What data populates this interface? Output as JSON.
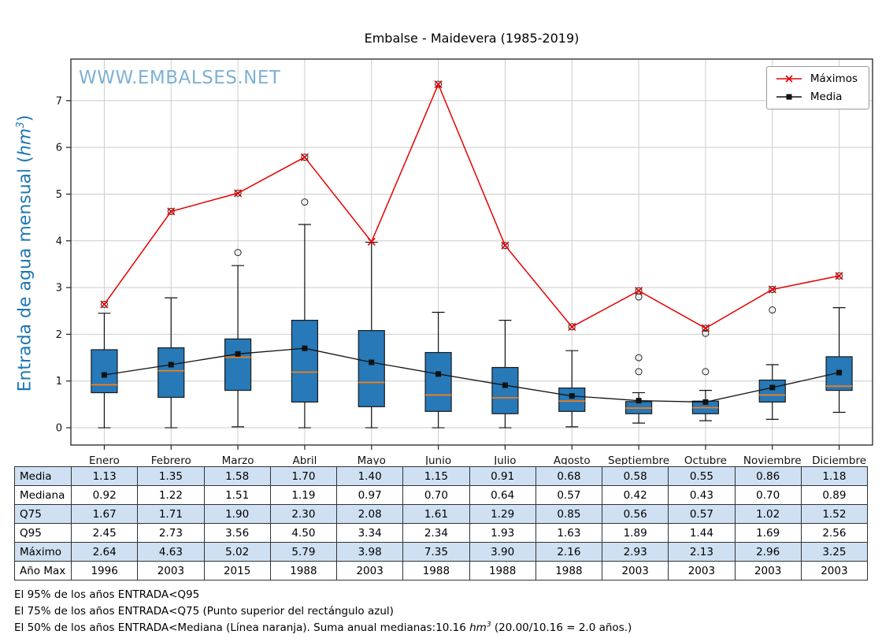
{
  "title": "Embalse - Maidevera (1985-2019)",
  "watermark": "WWW.EMBALSES.NET",
  "ylabel": {
    "prefix": "Entrada de agua mensual (",
    "unit": "hm",
    "sup": "3",
    "suffix": ")"
  },
  "legend": {
    "items": [
      {
        "label": "Máximos"
      },
      {
        "label": "Media"
      }
    ]
  },
  "colors": {
    "box_fill": "#2779b8",
    "box_edge": "#1a1a1a",
    "median_line": "#ff7f0e",
    "max_line": "#e60000",
    "mean_line": "#111111",
    "grid": "#cccccc",
    "axis": "#222222",
    "watermark": "#7fb1d4",
    "ylabel": "#1f77b4",
    "table_shaded_row": "#cfe0f3"
  },
  "chart_data": {
    "type": "boxplot+line",
    "title": "Embalse - Maidevera (1985-2019)",
    "ylabel": "Entrada de agua mensual (hm3)",
    "categories": [
      "Enero",
      "Febrero",
      "Marzo",
      "Abril",
      "Mayo",
      "Junio",
      "Julio",
      "Agosto",
      "Septiembre",
      "Octubre",
      "Noviembre",
      "Diciembre"
    ],
    "yticks": [
      0,
      1,
      2,
      3,
      4,
      5,
      6,
      7
    ],
    "ylim": [
      -0.37,
      7.89
    ],
    "grid": true,
    "legend_position": "upper right",
    "series": [
      {
        "name": "Máximos",
        "type": "line",
        "marker": "x",
        "color": "#e60000",
        "values": [
          2.64,
          4.63,
          5.02,
          5.79,
          3.98,
          7.35,
          3.9,
          2.16,
          2.93,
          2.13,
          2.96,
          3.25
        ]
      },
      {
        "name": "Media",
        "type": "line",
        "marker": "square",
        "color": "#111111",
        "values": [
          1.13,
          1.35,
          1.58,
          1.7,
          1.4,
          1.15,
          0.91,
          0.68,
          0.58,
          0.55,
          0.86,
          1.18
        ]
      }
    ],
    "boxes": {
      "q1": [
        0.75,
        0.65,
        0.8,
        0.55,
        0.45,
        0.35,
        0.3,
        0.35,
        0.3,
        0.3,
        0.55,
        0.8
      ],
      "median": [
        0.92,
        1.22,
        1.51,
        1.19,
        0.97,
        0.7,
        0.64,
        0.57,
        0.42,
        0.43,
        0.7,
        0.89
      ],
      "q3": [
        1.67,
        1.71,
        1.9,
        2.3,
        2.08,
        1.61,
        1.29,
        0.85,
        0.56,
        0.57,
        1.02,
        1.52
      ],
      "whisker_low": [
        0.0,
        0.0,
        0.02,
        0.0,
        0.0,
        0.0,
        0.0,
        0.02,
        0.1,
        0.15,
        0.18,
        0.33
      ],
      "whisker_high": [
        2.45,
        2.78,
        3.47,
        4.35,
        3.97,
        2.47,
        2.3,
        1.65,
        0.75,
        0.8,
        1.35,
        2.57
      ],
      "outliers": [
        [
          2.64
        ],
        [
          4.63
        ],
        [
          3.75,
          5.02
        ],
        [
          4.83,
          5.79
        ],
        [],
        [
          7.35
        ],
        [
          3.9
        ],
        [
          2.16
        ],
        [
          1.2,
          1.5,
          2.8,
          2.93
        ],
        [
          1.2,
          2.02,
          2.13
        ],
        [
          2.52,
          2.96
        ],
        [
          3.25
        ]
      ]
    }
  },
  "table": {
    "row_labels": [
      "Media",
      "Mediana",
      "Q75",
      "Q95",
      "Máximo",
      "Año Max"
    ],
    "rows": [
      [
        "1.13",
        "1.35",
        "1.58",
        "1.70",
        "1.40",
        "1.15",
        "0.91",
        "0.68",
        "0.58",
        "0.55",
        "0.86",
        "1.18"
      ],
      [
        "0.92",
        "1.22",
        "1.51",
        "1.19",
        "0.97",
        "0.70",
        "0.64",
        "0.57",
        "0.42",
        "0.43",
        "0.70",
        "0.89"
      ],
      [
        "1.67",
        "1.71",
        "1.90",
        "2.30",
        "2.08",
        "1.61",
        "1.29",
        "0.85",
        "0.56",
        "0.57",
        "1.02",
        "1.52"
      ],
      [
        "2.45",
        "2.73",
        "3.56",
        "4.50",
        "3.34",
        "2.34",
        "1.93",
        "1.63",
        "1.89",
        "1.44",
        "1.69",
        "2.56"
      ],
      [
        "2.64",
        "4.63",
        "5.02",
        "5.79",
        "3.98",
        "7.35",
        "3.90",
        "2.16",
        "2.93",
        "2.13",
        "2.96",
        "3.25"
      ],
      [
        "1996",
        "2003",
        "2015",
        "1988",
        "2003",
        "1988",
        "1988",
        "1988",
        "2003",
        "2003",
        "2003",
        "2003"
      ]
    ]
  },
  "footnotes": {
    "line1": "El 95% de los años ENTRADA<Q95",
    "line2": "El 75% de los años ENTRADA<Q75 (Punto superior del rectángulo azul)",
    "line3_pre": "El 50% de los años ENTRADA<Mediana (Línea naranja). Suma anual medianas:10.16 ",
    "line3_unit": "hm",
    "line3_sup": "3",
    "line3_post": " (20.00/10.16 = 2.0 años.)"
  }
}
